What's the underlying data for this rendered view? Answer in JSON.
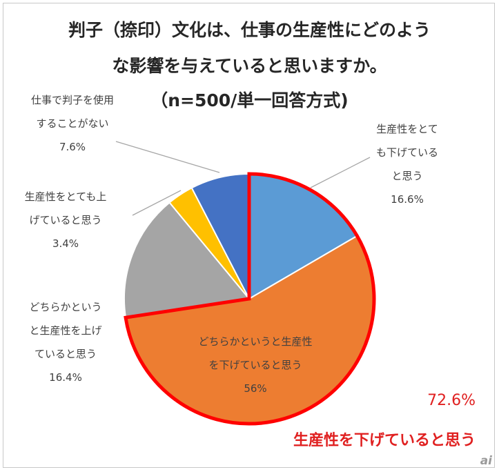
{
  "chart_data": {
    "type": "pie",
    "title_lines": [
      "判子（捺印）文化は、仕事の生産性にどのよう",
      "な影響を与えていると思いますか。",
      "（n=500/単一回答方式)"
    ],
    "slices": [
      {
        "label_lines": [
          "生産性をとて",
          "も下げている",
          "と思う"
        ],
        "value": 16.6,
        "value_label": "16.6%",
        "color": "#5b9bd5"
      },
      {
        "label_lines": [
          "どちらかというと生産性",
          "を下げていると思う"
        ],
        "value": 56,
        "value_label": "56%",
        "color": "#ed7d31"
      },
      {
        "label_lines": [
          "どちらかという",
          "と生産性を上げ",
          "ていると思う"
        ],
        "value": 16.4,
        "value_label": "16.4%",
        "color": "#a5a5a5"
      },
      {
        "label_lines": [
          "生産性をとても上",
          "げていると思う"
        ],
        "value": 3.4,
        "value_label": "3.4%",
        "color": "#ffc000"
      },
      {
        "label_lines": [
          "仕事で判子を使用",
          "することがない"
        ],
        "value": 7.6,
        "value_label": "7.6%",
        "color": "#4472c4"
      }
    ],
    "highlight": {
      "value_label": "72.6%",
      "text": "生産性を下げていると思う",
      "color": "#ff0000"
    }
  },
  "logo": "ai"
}
